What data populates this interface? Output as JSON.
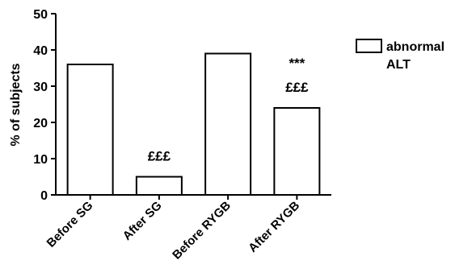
{
  "chart_data": {
    "type": "bar",
    "categories": [
      "Before SG",
      "After SG",
      "Before RYGB",
      "After RYGB"
    ],
    "series": [
      {
        "name": "abnormal ALT",
        "values": [
          36,
          5,
          39,
          24
        ]
      }
    ],
    "ylabel": "% of subjects",
    "xlabel": "",
    "ylim": [
      0,
      50
    ],
    "yticks": [
      0,
      10,
      20,
      30,
      40,
      50
    ],
    "annotations": [
      {
        "category": "After SG",
        "lines": [
          "£££"
        ]
      },
      {
        "category": "After RYGB",
        "lines": [
          "***",
          "£££"
        ]
      }
    ],
    "legend": {
      "position": "top-right",
      "lines": [
        "abnormal",
        "ALT"
      ]
    },
    "grid": false
  }
}
